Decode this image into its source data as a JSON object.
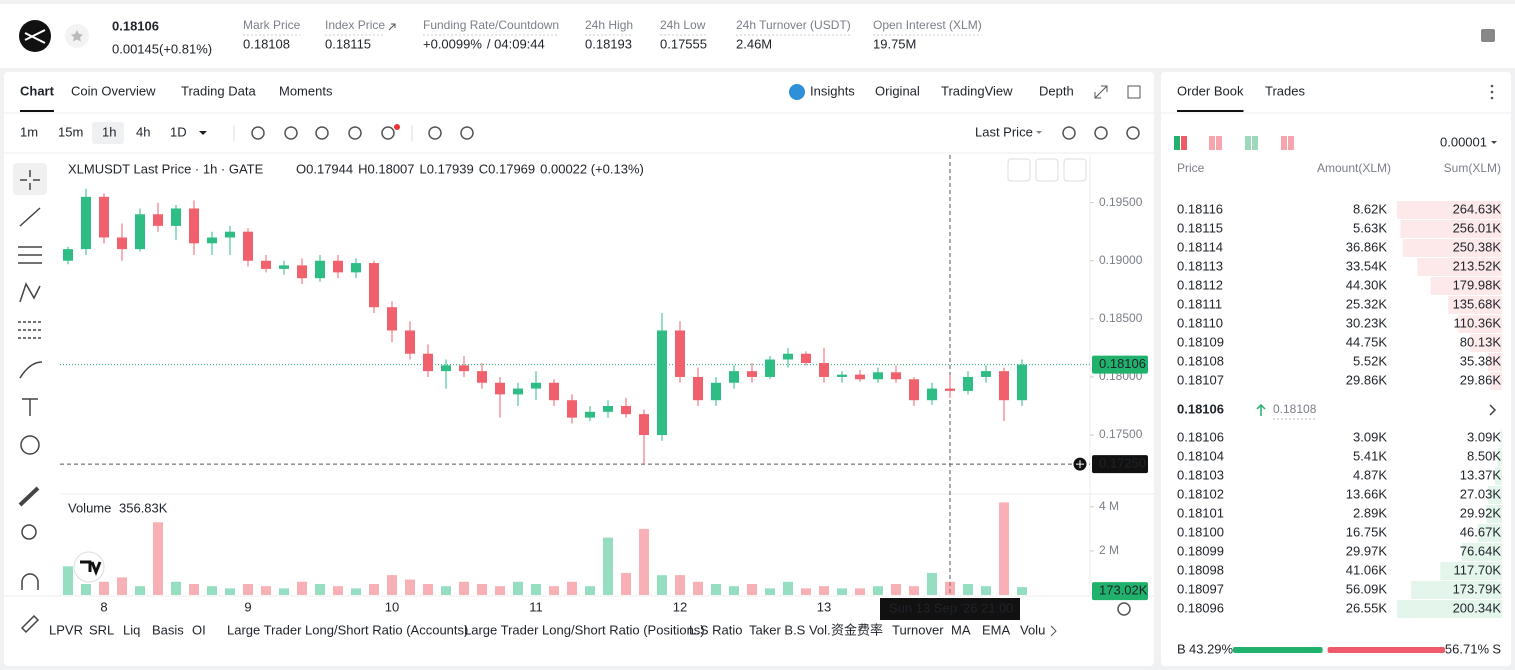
{
  "header": {
    "price": "0.18106",
    "change": "0.00145(+0.81%)",
    "stats": [
      {
        "label": "Mark Price",
        "value": "0.18108"
      },
      {
        "label": "Index Price",
        "value": "0.18115"
      },
      {
        "label": "Funding Rate/Countdown",
        "value": "+0.0099%",
        "extra": "/ 04:09:44"
      },
      {
        "label": "24h High",
        "value": "0.18193"
      },
      {
        "label": "24h Low",
        "value": "0.17555"
      },
      {
        "label": "24h Turnover (USDT)",
        "value": "2.46M"
      },
      {
        "label": "Open Interest (XLM)",
        "value": "19.75M"
      }
    ]
  },
  "tabs": [
    "Chart",
    "Coin Overview",
    "Trading Data",
    "Moments"
  ],
  "views": [
    "Insights",
    "Original",
    "TradingView",
    "Depth"
  ],
  "intervals": [
    "1m",
    "15m",
    "1h",
    "4h",
    "1D"
  ],
  "price_source": "Last Price",
  "indicators": [
    "LPVR",
    "SRL",
    "Liq",
    "Basis",
    "OI",
    "Large Trader Long/Short Ratio (Accounts)",
    "Large Trader Long/Short Ratio (Positions)",
    "L.S Ratio",
    "Taker B.S Vol.",
    "资金费率",
    "Turnover",
    "MA",
    "EMA",
    "Volu"
  ],
  "chart_data": {
    "type": "candlestick",
    "title": "XLMUSDT Last Price · 1h · GATE",
    "ohlc_legend": [
      {
        "label": "O",
        "value": "0.17944"
      },
      {
        "label": "H",
        "value": "0.18007"
      },
      {
        "label": "L",
        "value": "0.17939"
      },
      {
        "label": "C",
        "value": "0.17969"
      }
    ],
    "legend_change": "0.00022 (+0.13%)",
    "up_color": "#2ebd85",
    "down_color": "#f0616d",
    "categories": [
      null,
      null,
      "8",
      null,
      null,
      null,
      null,
      null,
      null,
      null,
      "9",
      null,
      null,
      null,
      null,
      null,
      null,
      null,
      "10",
      null,
      null,
      null,
      null,
      null,
      null,
      null,
      "11",
      null,
      null,
      null,
      null,
      null,
      null,
      null,
      "12",
      null,
      null,
      null,
      null,
      null,
      null,
      null,
      "13",
      null,
      null,
      null,
      null,
      null,
      null,
      null,
      null,
      null,
      null,
      null
    ],
    "open": [
      0.19,
      0.191,
      0.1955,
      0.192,
      0.191,
      0.194,
      0.193,
      0.1945,
      0.1915,
      0.192,
      0.1925,
      0.19,
      0.1893,
      0.1896,
      0.1885,
      0.19,
      0.189,
      0.1898,
      0.186,
      0.184,
      0.182,
      0.1805,
      0.181,
      0.1805,
      0.1795,
      0.1785,
      0.179,
      0.1795,
      0.178,
      0.1765,
      0.177,
      0.1775,
      0.1768,
      0.175,
      0.184,
      0.18,
      0.178,
      0.1795,
      0.1805,
      0.18,
      0.1815,
      0.182,
      0.1812,
      0.18,
      0.1802,
      0.1798,
      0.1804,
      0.1798,
      0.178,
      0.179,
      0.1788,
      0.18,
      0.1805,
      0.178
    ],
    "high": [
      0.1912,
      0.1962,
      0.1958,
      0.1932,
      0.1945,
      0.195,
      0.1948,
      0.1952,
      0.1925,
      0.193,
      0.1928,
      0.1905,
      0.19,
      0.1902,
      0.1905,
      0.1905,
      0.1902,
      0.19,
      0.1865,
      0.1848,
      0.1828,
      0.1815,
      0.1818,
      0.1812,
      0.18,
      0.1795,
      0.1805,
      0.1798,
      0.1785,
      0.1775,
      0.178,
      0.1782,
      0.1772,
      0.1855,
      0.1848,
      0.1808,
      0.18,
      0.181,
      0.1812,
      0.1818,
      0.1825,
      0.1822,
      0.1825,
      0.1805,
      0.1806,
      0.1808,
      0.181,
      0.18,
      0.1795,
      0.1802,
      0.1805,
      0.181,
      0.1808,
      0.1815
    ],
    "low": [
      0.1897,
      0.1905,
      0.1915,
      0.19,
      0.1908,
      0.1925,
      0.1918,
      0.1905,
      0.1905,
      0.1905,
      0.1895,
      0.189,
      0.1888,
      0.188,
      0.1882,
      0.1885,
      0.1885,
      0.1855,
      0.183,
      0.1815,
      0.18,
      0.179,
      0.18,
      0.179,
      0.1765,
      0.1775,
      0.178,
      0.1775,
      0.176,
      0.1762,
      0.1765,
      0.1765,
      0.1725,
      0.1745,
      0.1795,
      0.1775,
      0.1775,
      0.179,
      0.1795,
      0.1798,
      0.1808,
      0.181,
      0.1795,
      0.1795,
      0.1796,
      0.1795,
      0.1795,
      0.1775,
      0.1776,
      0.1782,
      0.1785,
      0.1795,
      0.1762,
      0.1775
    ],
    "close": [
      0.191,
      0.1955,
      0.192,
      0.191,
      0.194,
      0.193,
      0.1945,
      0.1915,
      0.192,
      0.1925,
      0.19,
      0.1893,
      0.1896,
      0.1885,
      0.19,
      0.189,
      0.1898,
      0.186,
      0.184,
      0.182,
      0.1805,
      0.181,
      0.1805,
      0.1795,
      0.1785,
      0.179,
      0.1795,
      0.178,
      0.1765,
      0.177,
      0.1775,
      0.1768,
      0.175,
      0.184,
      0.18,
      0.178,
      0.1795,
      0.1805,
      0.18,
      0.1815,
      0.182,
      0.1812,
      0.18,
      0.1802,
      0.1798,
      0.1804,
      0.1798,
      0.178,
      0.179,
      0.1788,
      0.18,
      0.1805,
      0.178,
      0.18106
    ],
    "ylim": [
      0.1701,
      0.1991
    ],
    "yticks": [
      {
        "value": 0.195,
        "label": "0.19500"
      },
      {
        "value": 0.19,
        "label": "0.19000"
      },
      {
        "value": 0.185,
        "label": "0.18500"
      },
      {
        "value": 0.18,
        "label": "0.18000"
      },
      {
        "value": 0.175,
        "label": "0.17500"
      }
    ],
    "last_price": {
      "value": 0.18106,
      "label": "0.18106"
    },
    "marked_price": {
      "value": 0.1725,
      "label": "0.17250"
    },
    "crosshair": {
      "date": "Sun 13 Sep '26",
      "time": "21:00"
    },
    "volume": {
      "title": "Volume",
      "last": "356.83K",
      "values": [
        1.3,
        0.5,
        0.6,
        0.8,
        0.4,
        3.3,
        0.6,
        0.5,
        0.4,
        0.3,
        0.5,
        0.4,
        0.3,
        0.6,
        0.5,
        0.4,
        0.3,
        0.5,
        0.9,
        0.7,
        0.5,
        0.4,
        0.6,
        0.5,
        0.4,
        0.6,
        0.5,
        0.4,
        0.6,
        0.4,
        2.6,
        1.0,
        3.0,
        0.9,
        0.9,
        0.6,
        0.5,
        0.4,
        0.5,
        0.3,
        0.6,
        0.3,
        0.4,
        0.3,
        0.3,
        0.4,
        0.5,
        0.4,
        1.0,
        0.6,
        0.5,
        0.4,
        4.2,
        0.35683
      ],
      "ylim": [
        0,
        4.4
      ],
      "yticks": [
        {
          "value": 4,
          "label": "4 M"
        },
        {
          "value": 2,
          "label": "2 M"
        }
      ],
      "marker": {
        "value": 0.17302,
        "label": "173.02K"
      }
    }
  },
  "order_book": {
    "tabs": [
      "Order Book",
      "Trades"
    ],
    "precision": "0.00001",
    "columns": [
      "Price",
      "Amount(XLM)",
      "Sum(XLM)"
    ],
    "asks": [
      [
        "0.18116",
        "8.62K",
        "264.63K"
      ],
      [
        "0.18115",
        "5.63K",
        "256.01K"
      ],
      [
        "0.18114",
        "36.86K",
        "250.38K"
      ],
      [
        "0.18113",
        "33.54K",
        "213.52K"
      ],
      [
        "0.18112",
        "44.30K",
        "179.98K"
      ],
      [
        "0.18111",
        "25.32K",
        "135.68K"
      ],
      [
        "0.18110",
        "30.23K",
        "110.36K"
      ],
      [
        "0.18109",
        "44.75K",
        "80.13K"
      ],
      [
        "0.18108",
        "5.52K",
        "35.38K"
      ],
      [
        "0.18107",
        "29.86K",
        "29.86K"
      ]
    ],
    "mid_price": "0.18106",
    "mark_price": "0.18108",
    "bids": [
      [
        "0.18106",
        "3.09K",
        "3.09K"
      ],
      [
        "0.18104",
        "5.41K",
        "8.50K"
      ],
      [
        "0.18103",
        "4.87K",
        "13.37K"
      ],
      [
        "0.18102",
        "13.66K",
        "27.03K"
      ],
      [
        "0.18101",
        "2.89K",
        "29.92K"
      ],
      [
        "0.18100",
        "16.75K",
        "46.67K"
      ],
      [
        "0.18099",
        "29.97K",
        "76.64K"
      ],
      [
        "0.18098",
        "41.06K",
        "117.70K"
      ],
      [
        "0.18097",
        "56.09K",
        "173.79K"
      ],
      [
        "0.18096",
        "26.55K",
        "200.34K"
      ]
    ],
    "ratio": {
      "buy_label": "B",
      "buy": "43.29%",
      "sell": "56.71%",
      "sell_label": "S"
    }
  }
}
